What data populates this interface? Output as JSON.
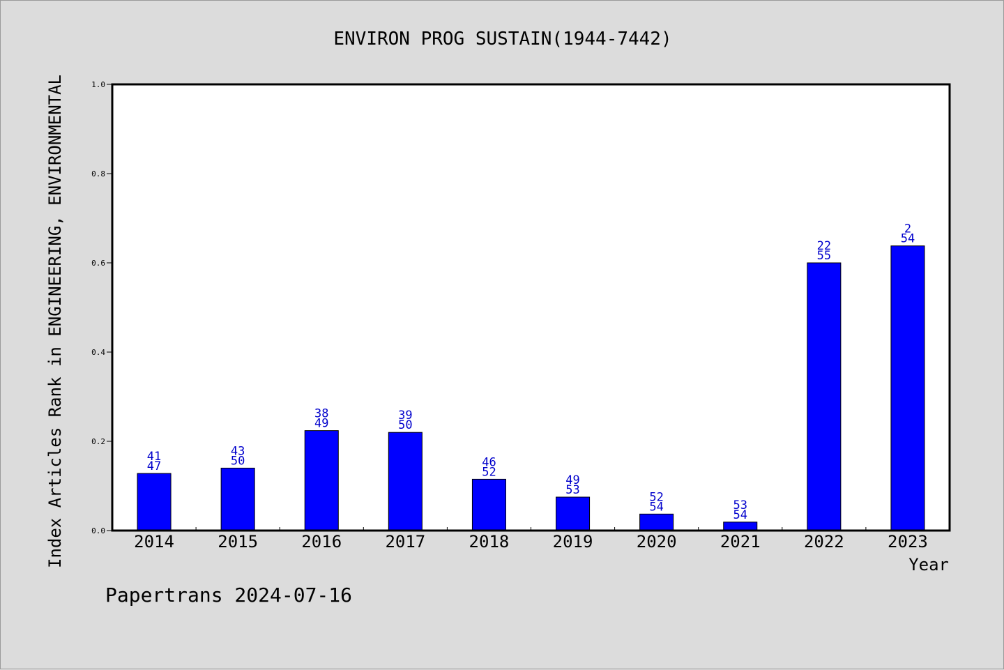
{
  "footer": "Papertrans 2024-07-16",
  "colors": {
    "background": "#dcdcdc",
    "plot_area": "#ffffff",
    "bar": "#0000ff",
    "data_label": "#0000cc"
  },
  "chart_data": {
    "type": "bar",
    "title": "ENVIRON PROG SUSTAIN(1944-7442)",
    "xlabel": "Year",
    "ylabel": "Index Articles Rank in ENGINEERING, ENVIRONMENTAL",
    "ylim": [
      0,
      1.0
    ],
    "yticks": [
      "0.0",
      "0.2",
      "0.4",
      "0.6",
      "0.8",
      "1.0"
    ],
    "grid": false,
    "categories": [
      "2014",
      "2015",
      "2016",
      "2017",
      "2018",
      "2019",
      "2020",
      "2021",
      "2022",
      "2023"
    ],
    "values": [
      0.128,
      0.14,
      0.224,
      0.22,
      0.115,
      0.075,
      0.037,
      0.019,
      0.6,
      0.638
    ],
    "labels_top": [
      "41",
      "43",
      "38",
      "39",
      "46",
      "49",
      "52",
      "53",
      "22",
      "2"
    ],
    "labels_bottom": [
      "47",
      "50",
      "49",
      "50",
      "52",
      "53",
      "54",
      "54",
      "55",
      "54"
    ]
  }
}
